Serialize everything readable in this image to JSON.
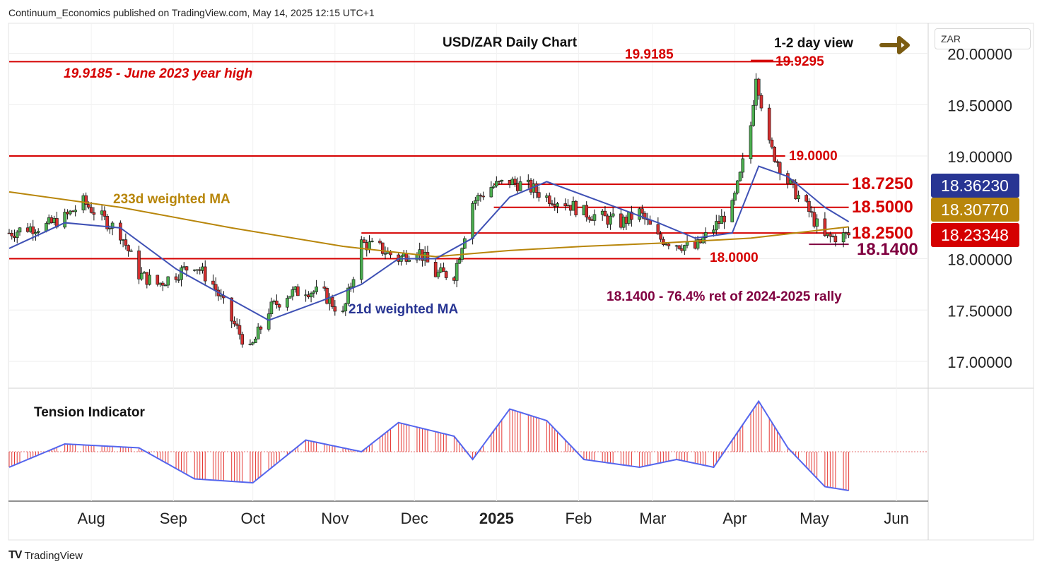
{
  "header": "Continuum_Economics published on TradingView.com, May 14, 2025 12:15 UTC+1",
  "footer": {
    "logo": "TV",
    "name": "TradingView"
  },
  "currency_selector": "ZAR",
  "colors": {
    "up": "#4caf50",
    "down": "#d32f2f",
    "level": "#d50000",
    "ma21": "#3f51b5",
    "ma233": "#b8860b",
    "arrow": "#7b5c12",
    "purple": "#800040",
    "tension_line": "#5566ee",
    "tension_bar": "#e53935"
  },
  "chart_data": {
    "type": "candlestick",
    "title": "USD/ZAR Daily Chart",
    "view_label": "1-2 day view",
    "y_ticks": [
      "17.00000",
      "17.50000",
      "18.00000",
      "19.00000",
      "19.50000",
      "20.00000"
    ],
    "ylim": [
      16.6,
      20.1
    ],
    "x_labels": [
      "Aug",
      "Sep",
      "Oct",
      "Nov",
      "Dec",
      "2025",
      "Feb",
      "Mar",
      "Apr",
      "May",
      "Jun"
    ],
    "x_range": [
      "2024-07-01",
      "2025-06-13"
    ],
    "price_tags": [
      {
        "value": "18.36230",
        "color": "#283593"
      },
      {
        "value": "18.30770",
        "color": "#b8860b"
      },
      {
        "value": "18.23348",
        "color": "#d50000"
      }
    ],
    "levels": [
      {
        "value": 19.9185,
        "label": "19.9185 - June 2023 year high",
        "start": "2024-07-01",
        "end": "2025-04-23"
      },
      {
        "value": 19.0,
        "label": "19.0000",
        "start": "2024-07-01",
        "end": "2025-04-20"
      },
      {
        "value": 18.725,
        "label": "18.7250",
        "start": "2024-12-31",
        "end": "2025-05-14"
      },
      {
        "value": 18.5,
        "label": "18.5000",
        "start": "2024-12-31",
        "end": "2025-05-14"
      },
      {
        "value": 18.25,
        "label": "18.2500",
        "start": "2024-11-11",
        "end": "2025-05-14"
      },
      {
        "value": 18.14,
        "label": "18.1400",
        "start": "2025-04-29",
        "end": "2025-05-14"
      },
      {
        "value": 18.0,
        "label": "18.0000",
        "start": "2024-07-01",
        "end": "2025-03-19"
      }
    ],
    "annotations": {
      "peak_label": "19.9185",
      "high_label": "19.9295",
      "retracement": "18.1400 - 76.4% ret of 2024-2025 rally",
      "ma233_label": "233d weighted MA",
      "ma21_label": "21d weighted MA"
    },
    "close_path": [
      [
        "2024-07-01",
        18.25
      ],
      [
        "2024-07-08",
        18.3
      ],
      [
        "2024-07-15",
        18.32
      ],
      [
        "2024-07-22",
        18.4
      ],
      [
        "2024-07-29",
        18.55
      ],
      [
        "2024-08-05",
        18.4
      ],
      [
        "2024-08-12",
        18.25
      ],
      [
        "2024-08-19",
        17.85
      ],
      [
        "2024-08-26",
        17.75
      ],
      [
        "2024-09-02",
        17.85
      ],
      [
        "2024-09-09",
        17.95
      ],
      [
        "2024-09-16",
        17.75
      ],
      [
        "2024-09-23",
        17.4
      ],
      [
        "2024-09-30",
        17.1
      ],
      [
        "2024-10-07",
        17.5
      ],
      [
        "2024-10-14",
        17.65
      ],
      [
        "2024-10-21",
        17.7
      ],
      [
        "2024-10-28",
        17.65
      ],
      [
        "2024-11-04",
        17.45
      ],
      [
        "2024-11-11",
        18.15
      ],
      [
        "2024-11-18",
        18.1
      ],
      [
        "2024-11-25",
        18.0
      ],
      [
        "2024-12-02",
        18.1
      ],
      [
        "2024-12-09",
        17.85
      ],
      [
        "2024-12-16",
        17.85
      ],
      [
        "2024-12-23",
        18.55
      ],
      [
        "2024-12-30",
        18.7
      ],
      [
        "2025-01-06",
        18.75
      ],
      [
        "2025-01-13",
        18.7
      ],
      [
        "2025-01-20",
        18.6
      ],
      [
        "2025-01-27",
        18.55
      ],
      [
        "2025-02-03",
        18.45
      ],
      [
        "2025-02-10",
        18.4
      ],
      [
        "2025-02-17",
        18.35
      ],
      [
        "2025-02-24",
        18.45
      ],
      [
        "2025-03-03",
        18.2
      ],
      [
        "2025-03-10",
        18.15
      ],
      [
        "2025-03-17",
        18.1
      ],
      [
        "2025-03-24",
        18.3
      ],
      [
        "2025-03-31",
        18.5
      ],
      [
        "2025-04-03",
        18.8
      ],
      [
        "2025-04-07",
        19.3
      ],
      [
        "2025-04-09",
        19.8
      ],
      [
        "2025-04-14",
        19.1
      ],
      [
        "2025-04-21",
        18.75
      ],
      [
        "2025-04-28",
        18.5
      ],
      [
        "2025-05-05",
        18.2
      ],
      [
        "2025-05-14",
        18.23
      ]
    ],
    "ma21_path": [
      [
        "2024-07-01",
        18.1
      ],
      [
        "2024-07-22",
        18.35
      ],
      [
        "2024-08-12",
        18.3
      ],
      [
        "2024-09-02",
        17.9
      ],
      [
        "2024-09-23",
        17.6
      ],
      [
        "2024-10-07",
        17.4
      ],
      [
        "2024-10-28",
        17.6
      ],
      [
        "2024-11-11",
        17.75
      ],
      [
        "2024-11-25",
        18.0
      ],
      [
        "2024-12-09",
        18.0
      ],
      [
        "2024-12-23",
        18.2
      ],
      [
        "2025-01-06",
        18.6
      ],
      [
        "2025-01-20",
        18.75
      ],
      [
        "2025-02-10",
        18.55
      ],
      [
        "2025-03-03",
        18.35
      ],
      [
        "2025-03-17",
        18.2
      ],
      [
        "2025-03-31",
        18.25
      ],
      [
        "2025-04-10",
        18.9
      ],
      [
        "2025-04-21",
        18.8
      ],
      [
        "2025-05-05",
        18.5
      ],
      [
        "2025-05-14",
        18.36
      ]
    ],
    "ma233_path": [
      [
        "2024-07-01",
        18.65
      ],
      [
        "2024-08-12",
        18.5
      ],
      [
        "2024-09-23",
        18.3
      ],
      [
        "2024-11-04",
        18.12
      ],
      [
        "2024-12-09",
        18.02
      ],
      [
        "2025-01-06",
        18.08
      ],
      [
        "2025-02-03",
        18.12
      ],
      [
        "2025-03-03",
        18.15
      ],
      [
        "2025-04-07",
        18.2
      ],
      [
        "2025-05-14",
        18.31
      ]
    ],
    "tension_path": [
      [
        "2024-07-01",
        -0.4
      ],
      [
        "2024-07-22",
        0.2
      ],
      [
        "2024-08-19",
        0.1
      ],
      [
        "2024-09-09",
        -0.7
      ],
      [
        "2024-10-01",
        -0.8
      ],
      [
        "2024-10-21",
        0.3
      ],
      [
        "2024-11-11",
        0.0
      ],
      [
        "2024-11-25",
        0.75
      ],
      [
        "2024-12-16",
        0.4
      ],
      [
        "2024-12-23",
        -0.2
      ],
      [
        "2025-01-06",
        1.1
      ],
      [
        "2025-01-20",
        0.8
      ],
      [
        "2025-02-03",
        -0.2
      ],
      [
        "2025-02-24",
        -0.4
      ],
      [
        "2025-03-10",
        -0.2
      ],
      [
        "2025-03-24",
        -0.4
      ],
      [
        "2025-04-10",
        1.3
      ],
      [
        "2025-04-21",
        0.1
      ],
      [
        "2025-05-05",
        -0.9
      ],
      [
        "2025-05-14",
        -1.0
      ]
    ],
    "tension_label": "Tension Indicator"
  }
}
